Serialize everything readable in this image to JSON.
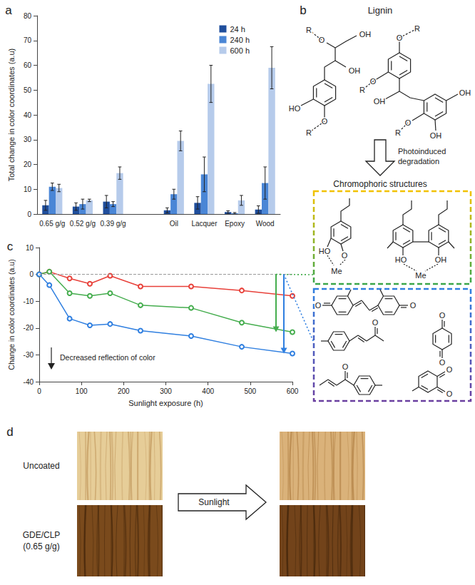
{
  "panel_labels": [
    "a",
    "b",
    "c",
    "d"
  ],
  "chart_data": [
    {
      "type": "bar",
      "categories": [
        "0.65 g/g",
        "0.52 g/g",
        "0.39 g/g",
        null,
        "Oil",
        "Lacquer",
        "Epoxy",
        "Wood"
      ],
      "y_label": "Total change in color coordinates (a.u)",
      "ylim": [
        0,
        80
      ],
      "yticks": [
        0,
        10,
        20,
        30,
        40,
        50,
        60,
        70,
        80
      ],
      "grid": false,
      "legend": "upper right",
      "series": [
        {
          "name": "24 h",
          "color": "#1f4e9c",
          "values": [
            3.5,
            3,
            5,
            null,
            1.5,
            4.5,
            0.8,
            1.8
          ],
          "errors": [
            2,
            1.5,
            2.5,
            null,
            1,
            2.5,
            0.5,
            1.5
          ]
        },
        {
          "name": "240 h",
          "color": "#4a86d6",
          "values": [
            11,
            4,
            4,
            null,
            8,
            16,
            0.3,
            12.5
          ],
          "errors": [
            1.5,
            2,
            1,
            null,
            2,
            7,
            0.3,
            6.5
          ]
        },
        {
          "name": "600 h",
          "color": "#b6cbeb",
          "values": [
            10.5,
            5.5,
            16.5,
            null,
            29.5,
            52.5,
            5.5,
            59
          ],
          "errors": [
            1.5,
            0.5,
            2.5,
            null,
            4,
            7.5,
            2,
            8.5
          ]
        }
      ]
    },
    {
      "type": "line",
      "x": [
        0,
        24,
        72,
        120,
        168,
        240,
        360,
        480,
        600
      ],
      "x_label": "Sunlight exposure (h)",
      "y_label": "Change in color coordinates (a.u)",
      "xlim": [
        0,
        600
      ],
      "xticks": [
        0,
        100,
        200,
        300,
        400,
        500,
        600
      ],
      "ylim": [
        -40,
        10
      ],
      "yticks": [
        -40,
        -30,
        -20,
        -10,
        0,
        10
      ],
      "grid": false,
      "marker": "emptyCircle",
      "reference_line": 0,
      "annotation": "Decreased reflection of color",
      "series": [
        {
          "color": "#e8413a",
          "values": [
            0,
            1,
            -1.5,
            -3.5,
            -0.5,
            -4.5,
            -4.5,
            -6,
            -8
          ]
        },
        {
          "color": "#45ad4e",
          "values": [
            0,
            1,
            -7,
            -8,
            -7,
            -11.5,
            -12.5,
            -18,
            -21.5
          ]
        },
        {
          "color": "#2f7fe0",
          "values": [
            0,
            -4,
            -16.5,
            -19,
            -18.5,
            -21,
            -23,
            -27,
            -29.5
          ]
        }
      ]
    }
  ],
  "scheme": {
    "title": "Lignin",
    "lignin_labels": [
      "R",
      "O",
      "OH",
      "OH",
      "HO",
      "O",
      "R",
      "O",
      "R",
      "O",
      "R",
      "OH",
      "O",
      "R",
      "OH",
      "OH"
    ],
    "step": "Photoinduced degradation",
    "product": "Chromophoric structures",
    "chromophore_labels_1": [
      "HO",
      "O",
      "Me",
      "HO",
      "OH",
      "Me"
    ],
    "chromophore_labels_2": [
      "O",
      "O",
      "O",
      "O",
      "O",
      "O",
      "O",
      "O"
    ]
  },
  "photos": {
    "rows": [
      [
        "Uncoated"
      ],
      [
        "GDE/CLP",
        "(0.65 g/g)"
      ]
    ],
    "arrow": "Sunlight"
  }
}
